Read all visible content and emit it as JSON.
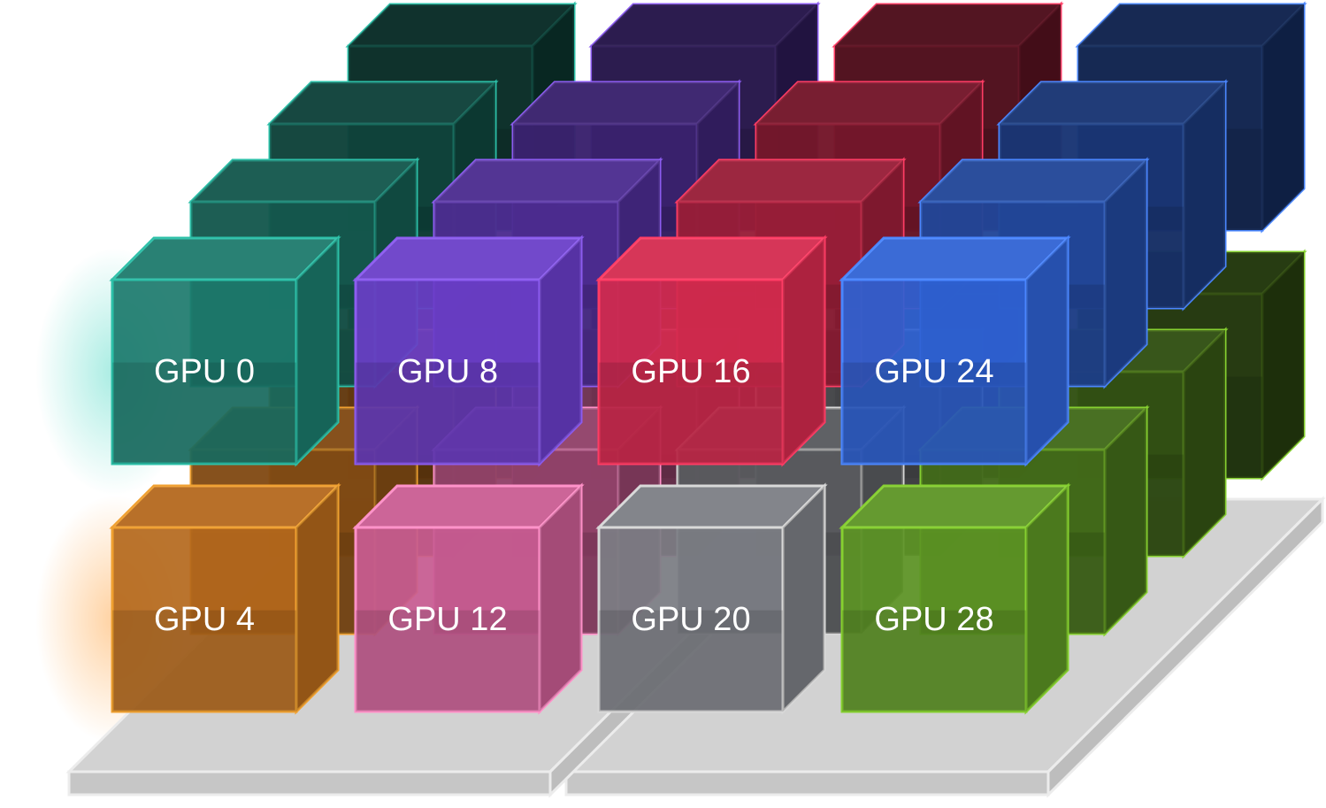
{
  "nodes": [
    {
      "label": "GPU 0"
    },
    {
      "label": "GPU 8"
    },
    {
      "label": "GPU 16"
    },
    {
      "label": "GPU 24"
    },
    {
      "label": "GPU 4"
    },
    {
      "label": "GPU 12"
    },
    {
      "label": "GPU 20"
    },
    {
      "label": "GPU 28"
    }
  ]
}
